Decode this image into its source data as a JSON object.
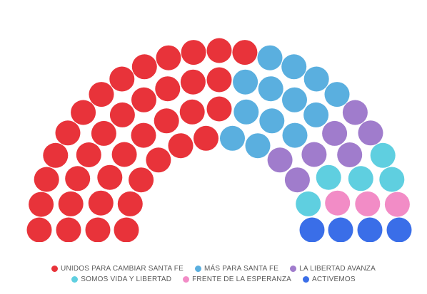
{
  "chart_data": {
    "type": "parliament",
    "title": "",
    "total_seats": 69,
    "parties": [
      {
        "name": "UNIDOS PARA CAMBIAR SANTA FE",
        "seats": 37,
        "color": "#e8333a"
      },
      {
        "name": "MÁS PARA SANTA FE",
        "seats": 13,
        "color": "#5aafdf"
      },
      {
        "name": "LA LIBERTAD AVANZA",
        "seats": 7,
        "color": "#a07ccc"
      },
      {
        "name": "SOMOS VIDA Y LIBERTAD",
        "seats": 5,
        "color": "#5fcfe0"
      },
      {
        "name": "FRENTE DE LA ESPERANZA",
        "seats": 3,
        "color": "#f28cc6"
      },
      {
        "name": "ACTIVEMOS",
        "seats": 4,
        "color": "#3a6ee8"
      }
    ],
    "legend_position": "bottom"
  }
}
